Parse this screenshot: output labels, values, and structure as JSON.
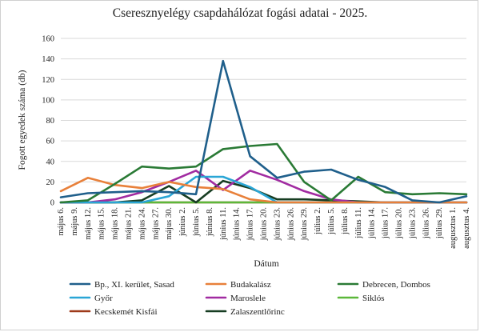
{
  "chart_data": {
    "type": "line",
    "title": "Cseresznyelégy csapdahálózat fogási adatai - 2025.",
    "xlabel": "Dátum",
    "ylabel": "Fogott egyedek száma (db)",
    "ylim": [
      0,
      160
    ],
    "yticks": [
      0,
      20,
      40,
      60,
      80,
      100,
      120,
      140,
      160
    ],
    "grid": true,
    "legend_position": "bottom",
    "categories": [
      "május 6.",
      "május 9.",
      "május 12.",
      "május 15.",
      "május 18.",
      "május 21.",
      "május 24.",
      "május 27.",
      "május 30.",
      "június 2.",
      "június 5.",
      "június 8.",
      "június 11.",
      "június 14.",
      "június 17.",
      "június 20.",
      "június 23.",
      "június 26.",
      "június 29.",
      "július 2.",
      "július 5.",
      "július 8.",
      "július 11.",
      "július 14.",
      "július 17.",
      "július 20.",
      "július 23.",
      "július 26.",
      "július 29.",
      "augusztus 1.",
      "augusztus 4."
    ],
    "series": [
      {
        "name": "Bp., XI. kerület, Sasad",
        "color": "#1f5f8b",
        "x": [
          0,
          2,
          4,
          6,
          8,
          10,
          12,
          14,
          16,
          18,
          20,
          22,
          24,
          26,
          28,
          30
        ],
        "values": [
          5,
          9,
          10,
          11,
          10,
          8,
          138,
          45,
          24,
          30,
          32,
          22,
          15,
          2,
          0,
          6
        ]
      },
      {
        "name": "Budakalász",
        "color": "#e8803a",
        "x": [
          0,
          2,
          4,
          6,
          8,
          10,
          12,
          14,
          16,
          18,
          20,
          22,
          24,
          26,
          28,
          30
        ],
        "values": [
          11,
          24,
          17,
          14,
          20,
          15,
          13,
          3,
          0,
          0,
          0,
          0,
          0,
          0,
          0,
          0
        ]
      },
      {
        "name": "Debrecen, Dombos",
        "color": "#2a7a35",
        "x": [
          0,
          2,
          4,
          6,
          8,
          10,
          12,
          14,
          16,
          18,
          20,
          22,
          24,
          26,
          28,
          30
        ],
        "values": [
          0,
          2,
          18,
          35,
          33,
          35,
          52,
          55,
          57,
          20,
          2,
          25,
          10,
          8,
          9,
          8
        ]
      },
      {
        "name": "Győr",
        "color": "#2aa6d6",
        "x": [
          0,
          2,
          4,
          6,
          8,
          10,
          12,
          14,
          16,
          18,
          20,
          22,
          24,
          26,
          28,
          30
        ],
        "values": [
          0,
          0,
          0,
          0,
          6,
          25,
          25,
          15,
          0,
          0,
          0,
          0,
          0,
          0,
          0,
          0
        ]
      },
      {
        "name": "Maroslele",
        "color": "#a12ba1",
        "x": [
          0,
          2,
          4,
          6,
          8,
          10,
          12,
          14,
          16,
          18,
          20,
          22,
          24,
          26,
          28,
          30
        ],
        "values": [
          0,
          0,
          3,
          10,
          20,
          31,
          12,
          31,
          22,
          11,
          3,
          0,
          0,
          0,
          0,
          0
        ]
      },
      {
        "name": "Siklós",
        "color": "#5cb83a",
        "x": [
          0,
          2,
          4,
          6,
          8,
          10,
          12,
          14,
          16,
          18,
          20,
          22,
          24,
          26,
          28,
          30
        ],
        "values": [
          0,
          0,
          0,
          0,
          0,
          0,
          0,
          0,
          0,
          0,
          0,
          0,
          0,
          0,
          0,
          0
        ]
      },
      {
        "name": "Kecskemét Kisfái",
        "color": "#9e3a1b",
        "x": [
          0,
          2,
          4,
          6,
          8,
          10,
          12,
          14,
          16,
          18,
          20,
          22,
          24,
          26,
          28,
          30
        ],
        "values": [
          0,
          0,
          0,
          0,
          0,
          0,
          0,
          0,
          0,
          0,
          0,
          0,
          0,
          0,
          0,
          0
        ]
      },
      {
        "name": "Zalaszentlőrinc",
        "color": "#173d22",
        "x": [
          0,
          2,
          4,
          6,
          8,
          10,
          12,
          14,
          16,
          18,
          20,
          22,
          24,
          26,
          28,
          30
        ],
        "values": [
          0,
          0,
          0,
          2,
          16,
          0,
          21,
          14,
          3,
          3,
          2,
          1,
          0,
          0,
          0,
          0
        ]
      }
    ]
  }
}
